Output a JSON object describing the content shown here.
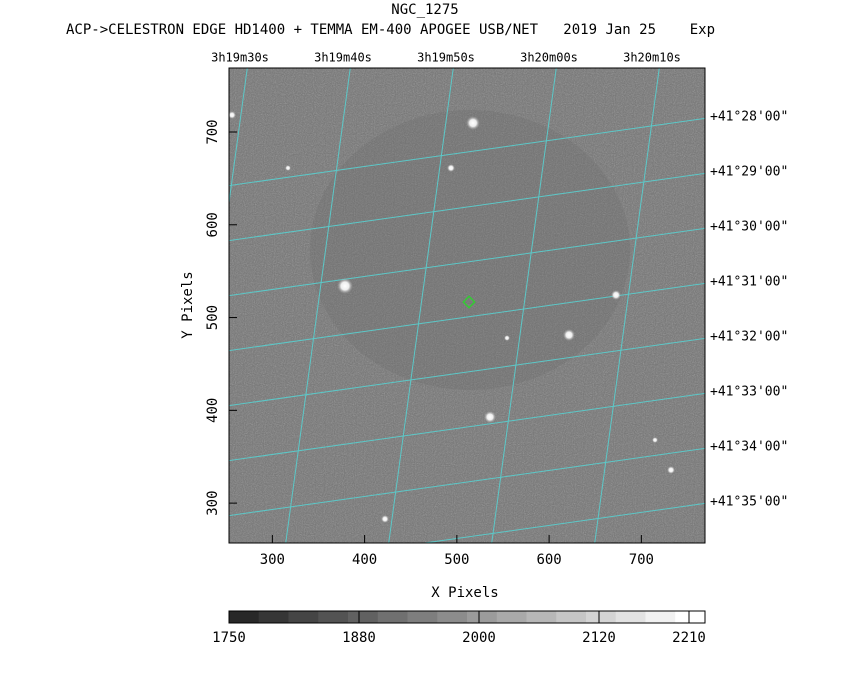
{
  "chart_data": {
    "type": "image",
    "title": "NGC_1275",
    "subtitle": "ACP->CELESTRON EDGE HD1400 + TEMMA EM-400 APOGEE USB/NET   2019 Jan 25    Exp",
    "xlabel": "X Pixels",
    "ylabel": "Y Pixels",
    "xlim": [
      253,
      769
    ],
    "xticks": [
      300,
      400,
      500,
      600,
      700
    ],
    "ylim": [
      257,
      769
    ],
    "yticks": [
      300,
      400,
      500,
      600,
      700
    ],
    "ra_labels": [
      "3h19m30s",
      "3h19m40s",
      "3h19m50s",
      "3h20m00s",
      "3h20m10s"
    ],
    "dec_labels": [
      "+41°28'00\"",
      "+41°29'00\"",
      "+41°30'00\"",
      "+41°31'00\"",
      "+41°32'00\"",
      "+41°33'00\"",
      "+41°34'00\"",
      "+41°35'00\""
    ],
    "grid_color": "#5cc8c8",
    "colorbar": {
      "lim": [
        1750,
        2226
      ],
      "ticks": [
        1750,
        1880,
        2000,
        2120,
        2210
      ]
    }
  }
}
